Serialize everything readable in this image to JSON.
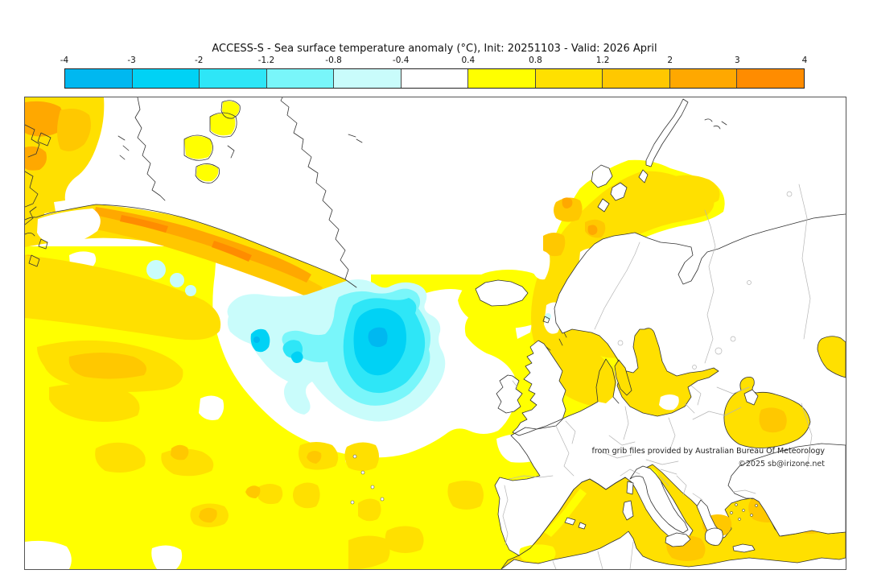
{
  "title": "ACCESS-S - Sea surface temperature anomaly (°C), Init: 20251103 - Valid: 2026 April",
  "colorbar": {
    "tick_labels": [
      "-4",
      "-3",
      "-2",
      "-1.2",
      "-0.8",
      "-0.4",
      "0.4",
      "0.8",
      "1.2",
      "2",
      "3",
      "4"
    ],
    "segment_colors": [
      "#00b8f0",
      "#00d2f5",
      "#2ee6f7",
      "#79f6fa",
      "#c9fcfb",
      "#ffffff",
      "#ffff00",
      "#ffe000",
      "#ffc800",
      "#ffa800",
      "#ff8c00"
    ],
    "border_color": "#222222",
    "unit": "°C"
  },
  "map": {
    "attribution_line1": "from grib files provided by Australian Bureau Of Meteorology",
    "attribution_line2": "©2025 sb@irizone.net",
    "land_color": "#ffffff",
    "coastline_color": "#333333",
    "country_border_color": "#b5b5b5",
    "frame_color": "#555555",
    "features": [
      {
        "name": "cold-anomaly-blob-south-of-iceland",
        "anomaly_range": "-2 to -0.4"
      },
      {
        "name": "southeast-greenland-warm-band",
        "anomaly_range": "1.2 to 4"
      },
      {
        "name": "norwegian-sea-warm-band",
        "anomaly_range": "0.8 to 2"
      },
      {
        "name": "north-atlantic-warm-pool",
        "anomaly_range": "0.4 to 1.2"
      },
      {
        "name": "mediterranean-warm",
        "anomaly_range": "0.8 to 2"
      },
      {
        "name": "black-sea-warm",
        "anomaly_range": "0.8 to 2"
      },
      {
        "name": "near-zero-anomaly-arctic-and-ring",
        "anomaly_range": "-0.4 to 0.4"
      }
    ]
  }
}
